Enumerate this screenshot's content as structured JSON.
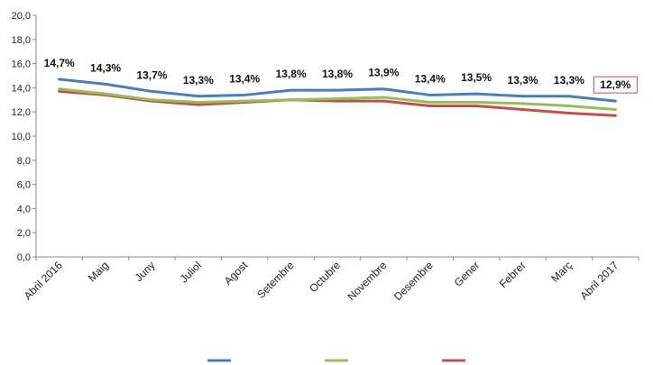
{
  "chart_data": {
    "type": "line",
    "title": "",
    "xlabel": "",
    "ylabel": "",
    "ylim": [
      0,
      20
    ],
    "yticks": [
      "0,0",
      "2,0",
      "4,0",
      "6,0",
      "8,0",
      "10,0",
      "12,0",
      "14,0",
      "16,0",
      "18,0",
      "20,0"
    ],
    "grid": false,
    "categories": [
      "Abril 2016",
      "Maig",
      "Juny",
      "Juliol",
      "Agost",
      "Setembre",
      "Octubre",
      "Novembre",
      "Desembre",
      "Gener",
      "Febrer",
      "Març",
      "Abril 2017"
    ],
    "series": [
      {
        "color": "#4a7ebb",
        "values": [
          14.7,
          14.3,
          13.7,
          13.3,
          13.4,
          13.8,
          13.8,
          13.9,
          13.4,
          13.5,
          13.3,
          13.3,
          12.9
        ],
        "labels": [
          "14,7%",
          "14,3%",
          "13,7%",
          "13,3%",
          "13,4%",
          "13,8%",
          "13,8%",
          "13,9%",
          "13,4%",
          "13,5%",
          "13,3%",
          "13,3%",
          "12,9%"
        ]
      },
      {
        "color": "#9bbb59",
        "values": [
          13.9,
          13.5,
          13.0,
          12.8,
          12.9,
          13.0,
          13.1,
          13.2,
          12.8,
          12.8,
          12.7,
          12.5,
          12.2
        ]
      },
      {
        "color": "#c0504d",
        "values": [
          13.7,
          13.4,
          12.9,
          12.6,
          12.8,
          13.0,
          12.9,
          12.9,
          12.5,
          12.5,
          12.2,
          11.9,
          11.7
        ]
      }
    ],
    "highlight_last_label": true,
    "legend_position": "bottom"
  }
}
